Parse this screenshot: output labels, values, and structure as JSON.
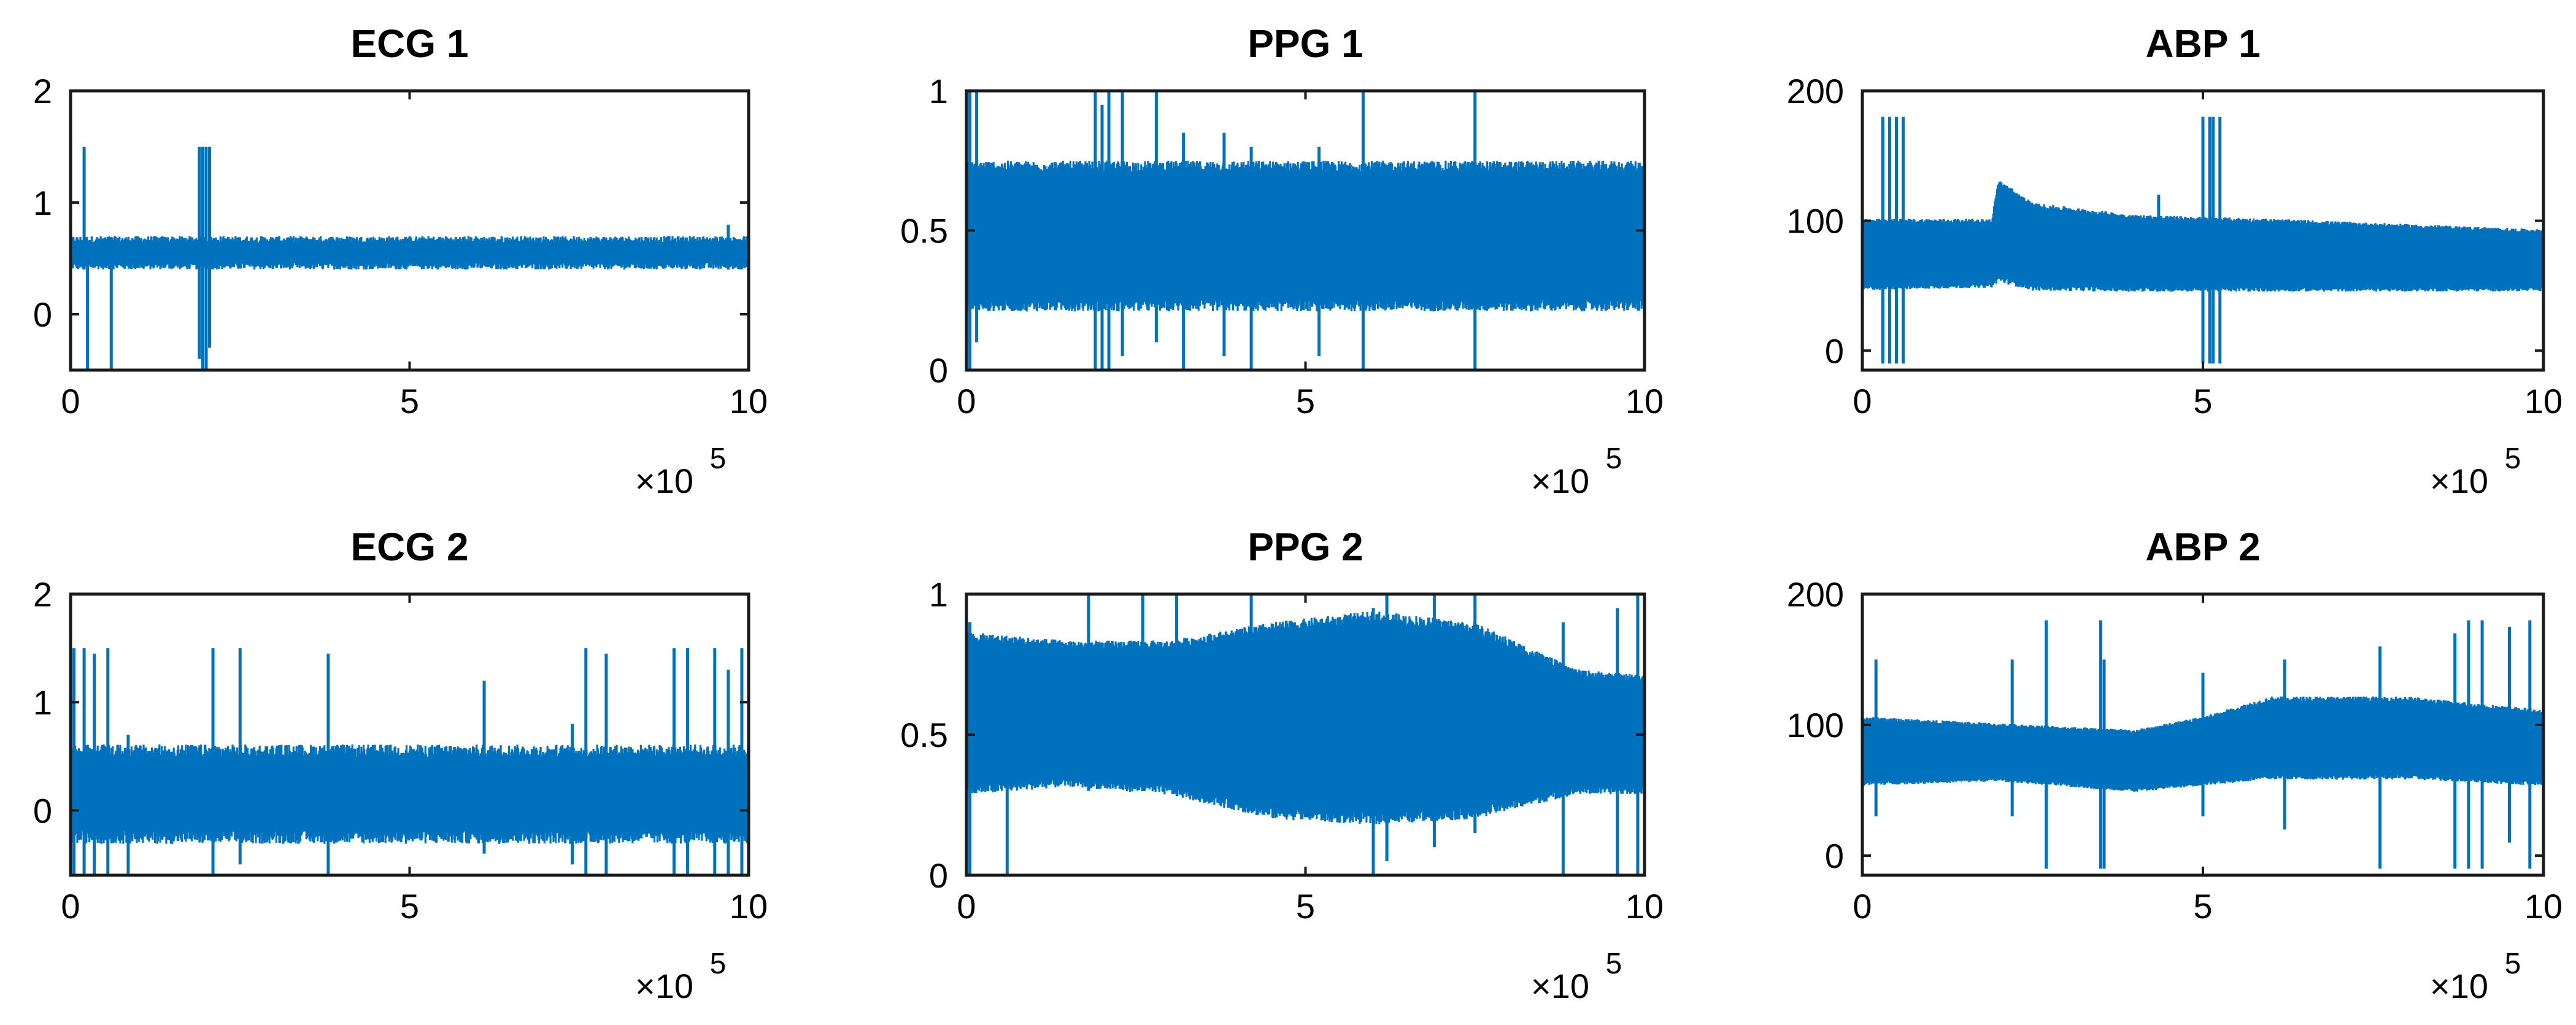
{
  "chart_data": [
    {
      "type": "line",
      "title": "ECG 1",
      "xlabel": "",
      "ylabel": "",
      "xlim": [
        0,
        1000000
      ],
      "ylim": [
        -0.5,
        2
      ],
      "xticks": [
        0,
        500000,
        1000000
      ],
      "xtick_labels": [
        "0",
        "5",
        "10"
      ],
      "yticks": [
        0,
        1,
        2
      ],
      "ytick_labels": [
        "0",
        "1",
        "2"
      ],
      "x_multiplier": {
        "base": "×10",
        "exponent": "5"
      },
      "color": "#0072BD",
      "band": {
        "center": 0.55,
        "half_width": 0.12,
        "noise": 0.03
      },
      "spikes": [
        {
          "x": 20000,
          "low": 0.4,
          "high": 1.5
        },
        {
          "x": 25000,
          "low": -0.5,
          "high": 0.6
        },
        {
          "x": 60000,
          "low": -0.5,
          "high": 0.6
        },
        {
          "x": 190000,
          "low": -0.4,
          "high": 1.5
        },
        {
          "x": 195000,
          "low": -0.5,
          "high": 1.5
        },
        {
          "x": 200000,
          "low": -0.5,
          "high": 1.5
        },
        {
          "x": 205000,
          "low": -0.3,
          "high": 1.5
        },
        {
          "x": 970000,
          "low": 0.4,
          "high": 0.8
        }
      ]
    },
    {
      "type": "line",
      "title": "PPG 1",
      "xlabel": "",
      "ylabel": "",
      "xlim": [
        0,
        1000000
      ],
      "ylim": [
        0,
        1
      ],
      "xticks": [
        0,
        500000,
        1000000
      ],
      "xtick_labels": [
        "0",
        "5",
        "10"
      ],
      "yticks": [
        0,
        0.5,
        1
      ],
      "ytick_labels": [
        "0",
        "0.5",
        "1"
      ],
      "x_multiplier": {
        "base": "×10",
        "exponent": "5"
      },
      "color": "#0072BD",
      "band": {
        "center": 0.48,
        "half_width": 0.25,
        "noise": 0.02
      },
      "spikes": [
        {
          "x": 5000,
          "low": 0.0,
          "high": 1.0
        },
        {
          "x": 15000,
          "low": 0.1,
          "high": 1.0
        },
        {
          "x": 190000,
          "low": 0.0,
          "high": 1.0
        },
        {
          "x": 200000,
          "low": 0.0,
          "high": 0.95
        },
        {
          "x": 210000,
          "low": 0.0,
          "high": 1.0
        },
        {
          "x": 230000,
          "low": 0.05,
          "high": 1.0
        },
        {
          "x": 280000,
          "low": 0.1,
          "high": 1.0
        },
        {
          "x": 320000,
          "low": 0.0,
          "high": 0.85
        },
        {
          "x": 380000,
          "low": 0.05,
          "high": 0.85
        },
        {
          "x": 420000,
          "low": 0.0,
          "high": 0.8
        },
        {
          "x": 520000,
          "low": 0.05,
          "high": 0.8
        },
        {
          "x": 585000,
          "low": 0.0,
          "high": 1.0
        },
        {
          "x": 750000,
          "low": 0.0,
          "high": 1.0
        }
      ]
    },
    {
      "type": "line",
      "title": "ABP 1",
      "xlabel": "",
      "ylabel": "",
      "xlim": [
        0,
        1000000
      ],
      "ylim": [
        -15,
        200
      ],
      "xticks": [
        0,
        500000,
        1000000
      ],
      "xtick_labels": [
        "0",
        "5",
        "10"
      ],
      "yticks": [
        0,
        100,
        200
      ],
      "ytick_labels": [
        "0",
        "100",
        "200"
      ],
      "x_multiplier": {
        "base": "×10",
        "exponent": "5"
      },
      "color": "#0072BD",
      "band_profile": [
        {
          "x": 0,
          "low": 48,
          "high": 100
        },
        {
          "x": 190000,
          "low": 50,
          "high": 100
        },
        {
          "x": 200000,
          "low": 55,
          "high": 130
        },
        {
          "x": 250000,
          "low": 48,
          "high": 112
        },
        {
          "x": 400000,
          "low": 47,
          "high": 103
        },
        {
          "x": 600000,
          "low": 47,
          "high": 100
        },
        {
          "x": 1000000,
          "low": 47,
          "high": 92
        }
      ],
      "spikes": [
        {
          "x": 30000,
          "low": -10,
          "high": 180
        },
        {
          "x": 40000,
          "low": -10,
          "high": 180
        },
        {
          "x": 50000,
          "low": -10,
          "high": 180
        },
        {
          "x": 60000,
          "low": -10,
          "high": 180
        },
        {
          "x": 435000,
          "low": 60,
          "high": 120
        },
        {
          "x": 500000,
          "low": -10,
          "high": 180
        },
        {
          "x": 510000,
          "low": -10,
          "high": 180
        },
        {
          "x": 515000,
          "low": -10,
          "high": 180
        },
        {
          "x": 525000,
          "low": -10,
          "high": 180
        }
      ]
    },
    {
      "type": "line",
      "title": "ECG 2",
      "xlabel": "",
      "ylabel": "",
      "xlim": [
        0,
        1000000
      ],
      "ylim": [
        -0.6,
        2
      ],
      "xticks": [
        0,
        500000,
        1000000
      ],
      "xtick_labels": [
        "0",
        "5",
        "10"
      ],
      "yticks": [
        0,
        1,
        2
      ],
      "ytick_labels": [
        "0",
        "1",
        "2"
      ],
      "x_multiplier": {
        "base": "×10",
        "exponent": "5"
      },
      "color": "#0072BD",
      "band": {
        "center": 0.15,
        "half_width": 0.4,
        "noise": 0.06
      },
      "spikes": [
        {
          "x": 5000,
          "low": -0.6,
          "high": 1.5
        },
        {
          "x": 20000,
          "low": -0.6,
          "high": 1.5
        },
        {
          "x": 35000,
          "low": -0.6,
          "high": 1.45
        },
        {
          "x": 55000,
          "low": -0.6,
          "high": 1.5
        },
        {
          "x": 85000,
          "low": -0.6,
          "high": 0.7
        },
        {
          "x": 210000,
          "low": -0.6,
          "high": 1.5
        },
        {
          "x": 250000,
          "low": -0.5,
          "high": 1.5
        },
        {
          "x": 380000,
          "low": -0.6,
          "high": 1.45
        },
        {
          "x": 610000,
          "low": -0.4,
          "high": 1.2
        },
        {
          "x": 740000,
          "low": -0.5,
          "high": 0.8
        },
        {
          "x": 760000,
          "low": -0.6,
          "high": 1.5
        },
        {
          "x": 790000,
          "low": -0.6,
          "high": 1.45
        },
        {
          "x": 890000,
          "low": -0.6,
          "high": 1.5
        },
        {
          "x": 910000,
          "low": -0.6,
          "high": 1.5
        },
        {
          "x": 950000,
          "low": -0.6,
          "high": 1.5
        },
        {
          "x": 970000,
          "low": -0.6,
          "high": 1.3
        },
        {
          "x": 990000,
          "low": -0.6,
          "high": 1.5
        }
      ]
    },
    {
      "type": "line",
      "title": "PPG 2",
      "xlabel": "",
      "ylabel": "",
      "xlim": [
        0,
        1000000
      ],
      "ylim": [
        0,
        1
      ],
      "xticks": [
        0,
        500000,
        1000000
      ],
      "xtick_labels": [
        "0",
        "5",
        "10"
      ],
      "yticks": [
        0,
        0.5,
        1
      ],
      "ytick_labels": [
        "0",
        "0.5",
        "1"
      ],
      "x_multiplier": {
        "base": "×10",
        "exponent": "5"
      },
      "color": "#0072BD",
      "band_profile": [
        {
          "x": 0,
          "low": 0.3,
          "high": 0.85
        },
        {
          "x": 150000,
          "low": 0.33,
          "high": 0.82
        },
        {
          "x": 300000,
          "low": 0.3,
          "high": 0.82
        },
        {
          "x": 450000,
          "low": 0.22,
          "high": 0.88
        },
        {
          "x": 600000,
          "low": 0.2,
          "high": 0.92
        },
        {
          "x": 750000,
          "low": 0.22,
          "high": 0.88
        },
        {
          "x": 900000,
          "low": 0.3,
          "high": 0.72
        },
        {
          "x": 1000000,
          "low": 0.3,
          "high": 0.7
        }
      ],
      "spikes": [
        {
          "x": 5000,
          "low": 0.0,
          "high": 0.9
        },
        {
          "x": 60000,
          "low": 0.0,
          "high": 0.6
        },
        {
          "x": 180000,
          "low": 0.3,
          "high": 1.0
        },
        {
          "x": 260000,
          "low": 0.3,
          "high": 1.0
        },
        {
          "x": 310000,
          "low": 0.3,
          "high": 1.0
        },
        {
          "x": 420000,
          "low": 0.3,
          "high": 1.0
        },
        {
          "x": 600000,
          "low": 0.0,
          "high": 0.95
        },
        {
          "x": 620000,
          "low": 0.05,
          "high": 1.0
        },
        {
          "x": 690000,
          "low": 0.1,
          "high": 1.0
        },
        {
          "x": 750000,
          "low": 0.15,
          "high": 1.0
        },
        {
          "x": 880000,
          "low": 0.0,
          "high": 0.9
        },
        {
          "x": 960000,
          "low": 0.0,
          "high": 0.95
        },
        {
          "x": 990000,
          "low": 0.0,
          "high": 1.0
        }
      ]
    },
    {
      "type": "line",
      "title": "ABP 2",
      "xlabel": "",
      "ylabel": "",
      "xlim": [
        0,
        1000000
      ],
      "ylim": [
        -15,
        200
      ],
      "xticks": [
        0,
        500000,
        1000000
      ],
      "xtick_labels": [
        "0",
        "5",
        "10"
      ],
      "yticks": [
        0,
        100,
        200
      ],
      "ytick_labels": [
        "0",
        "100",
        "200"
      ],
      "x_multiplier": {
        "base": "×10",
        "exponent": "5"
      },
      "color": "#0072BD",
      "band_profile": [
        {
          "x": 0,
          "low": 55,
          "high": 105
        },
        {
          "x": 200000,
          "low": 58,
          "high": 100
        },
        {
          "x": 400000,
          "low": 50,
          "high": 95
        },
        {
          "x": 500000,
          "low": 55,
          "high": 105
        },
        {
          "x": 600000,
          "low": 60,
          "high": 120
        },
        {
          "x": 800000,
          "low": 60,
          "high": 120
        },
        {
          "x": 1000000,
          "low": 55,
          "high": 110
        }
      ],
      "spikes": [
        {
          "x": 20000,
          "low": 30,
          "high": 150
        },
        {
          "x": 220000,
          "low": 30,
          "high": 150
        },
        {
          "x": 270000,
          "low": -10,
          "high": 180
        },
        {
          "x": 350000,
          "low": -10,
          "high": 180
        },
        {
          "x": 355000,
          "low": -10,
          "high": 150
        },
        {
          "x": 500000,
          "low": 30,
          "high": 140
        },
        {
          "x": 620000,
          "low": 20,
          "high": 150
        },
        {
          "x": 760000,
          "low": -10,
          "high": 160
        },
        {
          "x": 870000,
          "low": -10,
          "high": 170
        },
        {
          "x": 890000,
          "low": -10,
          "high": 180
        },
        {
          "x": 910000,
          "low": -10,
          "high": 180
        },
        {
          "x": 950000,
          "low": 10,
          "high": 175
        },
        {
          "x": 980000,
          "low": -10,
          "high": 180
        }
      ]
    }
  ]
}
